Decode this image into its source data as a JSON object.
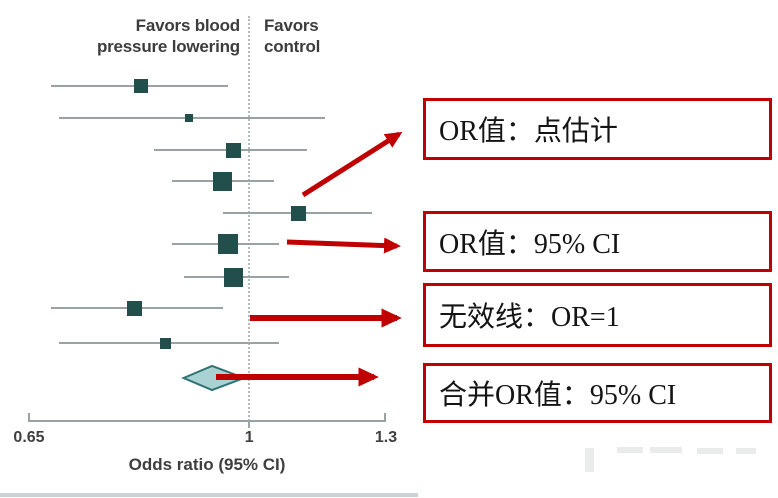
{
  "chart_data": {
    "type": "forest",
    "title": "",
    "xlabel": "Odds ratio (95% CI)",
    "x_scale": "log",
    "x_axis_range": [
      0.65,
      1.3
    ],
    "x_ticks": [
      0.65,
      1,
      1.3
    ],
    "tick_labels": [
      "0.65",
      "1",
      "1.3"
    ],
    "grid": false,
    "legend_position": "none",
    "headers": {
      "favors_left_line1": "Favors blood",
      "favors_left_line2": "pressure lowering",
      "favors_right_line1": "Favors",
      "favors_right_line2": "control"
    },
    "null_line_or": 1,
    "studies": [
      {
        "or": 0.81,
        "ci_low": 0.68,
        "ci_high": 0.96,
        "weight": 9.0
      },
      {
        "or": 0.89,
        "ci_low": 0.69,
        "ci_high": 1.16,
        "weight": 2.9
      },
      {
        "or": 0.97,
        "ci_low": 0.83,
        "ci_high": 1.12,
        "weight": 10.3
      },
      {
        "or": 0.95,
        "ci_low": 0.86,
        "ci_high": 1.05,
        "weight": 16.6
      },
      {
        "or": 1.1,
        "ci_low": 0.95,
        "ci_high": 1.27,
        "weight": 10.3
      },
      {
        "or": 0.96,
        "ci_low": 0.86,
        "ci_high": 1.06,
        "weight": 18.4
      },
      {
        "or": 0.97,
        "ci_low": 0.88,
        "ci_high": 1.08,
        "weight": 16.6
      },
      {
        "or": 0.8,
        "ci_low": 0.68,
        "ci_high": 0.95,
        "weight": 10.3
      },
      {
        "or": 0.85,
        "ci_low": 0.69,
        "ci_high": 1.06,
        "weight": 5.6
      }
    ],
    "pooled": {
      "or": 0.93,
      "ci_low": 0.88,
      "ci_high": 0.99
    }
  },
  "callouts": [
    {
      "label": "OR值：点估计"
    },
    {
      "label": "OR值：95% CI"
    },
    {
      "label": "无效线：OR=1"
    },
    {
      "label": "合并OR值：95% CI"
    }
  ],
  "colors": {
    "marker_teal": "#224e4b",
    "ci_line_gray": "#9aa3a3",
    "diamond_fill": "#a9d2d3",
    "diamond_stroke": "#2f7276",
    "annotation_red": "#c00000",
    "axis_text": "#3d3d3d"
  }
}
